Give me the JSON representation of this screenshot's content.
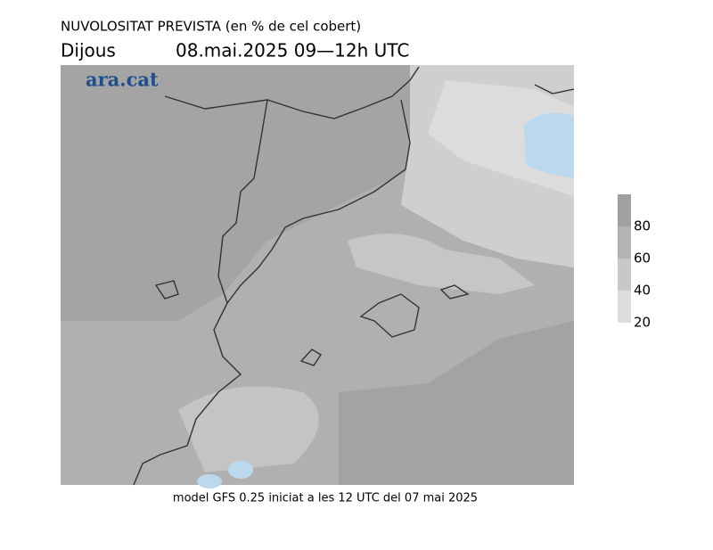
{
  "header": {
    "title": "NUVOLOSITAT PREVISTA (en % de cel cobert)",
    "day": "Dijous",
    "date": "08.mai.2025 09—12h UTC"
  },
  "logo": "ara.cat",
  "colorbar": {
    "range": [
      20,
      100
    ],
    "ticks": [
      20,
      40,
      60,
      80
    ],
    "colors": [
      "#dddddd",
      "#c8c8c8",
      "#b3b3b3",
      "#a0a0a0"
    ]
  },
  "footer": "model GFS 0.25 iniciat a les 12 UTC del 07 mai 2025"
}
